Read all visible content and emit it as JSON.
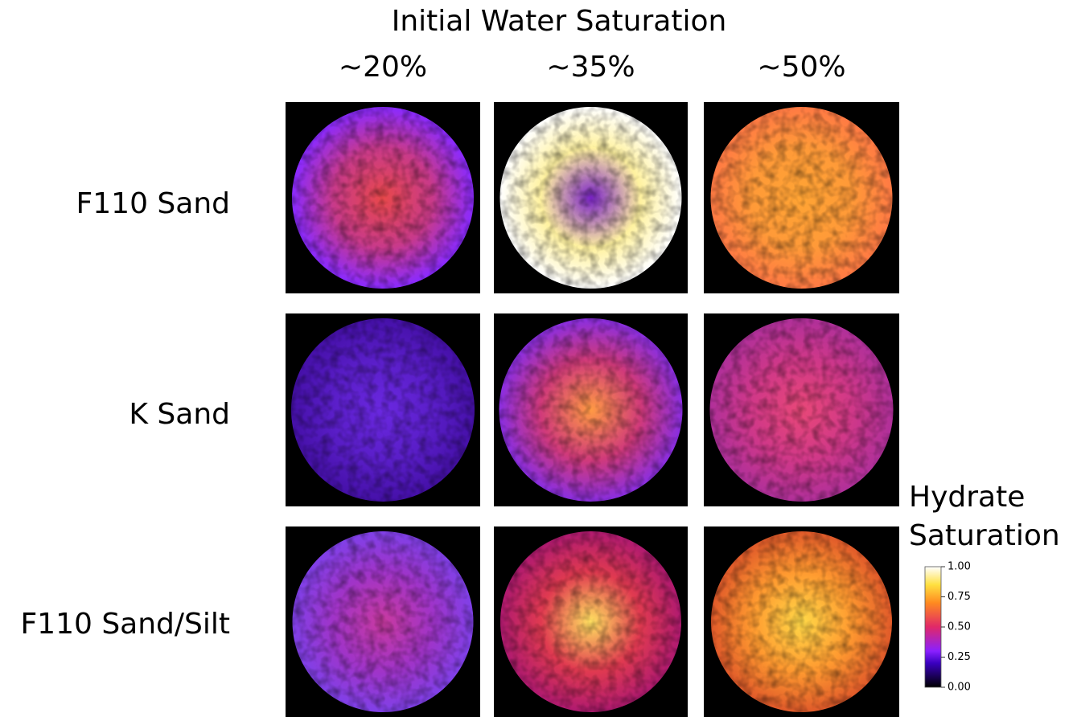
{
  "title": "Initial Water Saturation",
  "columns": [
    "~20%",
    "~35%",
    "~50%"
  ],
  "rows": [
    "F110 Sand",
    "K Sand",
    "F110 Sand/Silt"
  ],
  "colorbar": {
    "title": [
      "Hydrate",
      "Saturation"
    ],
    "ticks": [
      {
        "value": 0,
        "label": "0.00"
      },
      {
        "value": 0.25,
        "label": "0.25"
      },
      {
        "value": 0.5,
        "label": "0.50"
      },
      {
        "value": 0.75,
        "label": "0.75"
      },
      {
        "value": 1,
        "label": "1.00"
      }
    ]
  }
}
